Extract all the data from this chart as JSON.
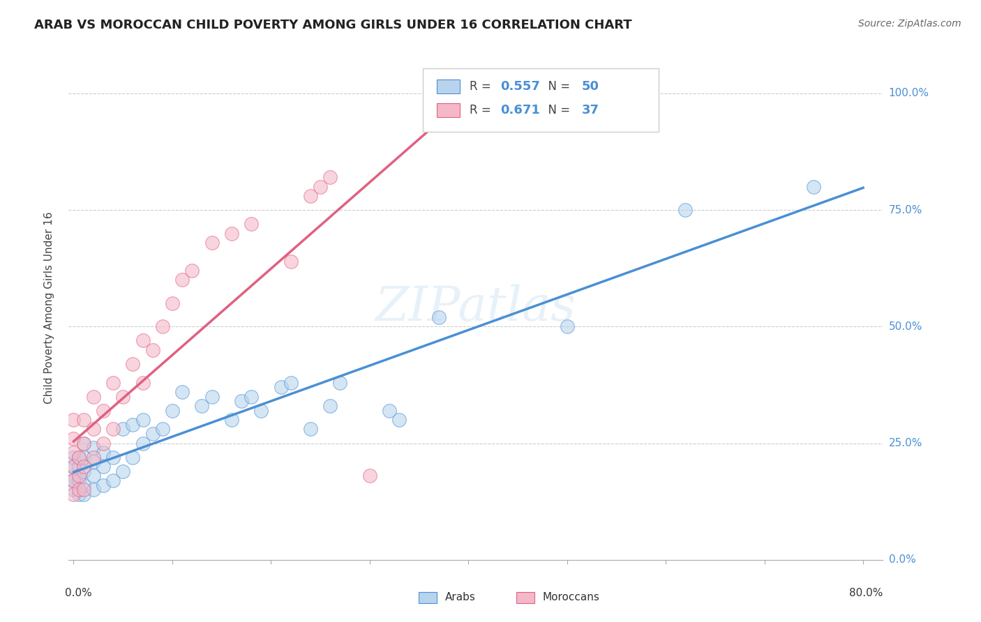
{
  "title": "ARAB VS MOROCCAN CHILD POVERTY AMONG GIRLS UNDER 16 CORRELATION CHART",
  "source": "Source: ZipAtlas.com",
  "ylabel": "Child Poverty Among Girls Under 16",
  "xlim": [
    0.0,
    0.8
  ],
  "ylim": [
    0.0,
    1.05
  ],
  "arab_R": 0.557,
  "arab_N": 50,
  "moroccan_R": 0.671,
  "moroccan_N": 37,
  "arab_color": "#b8d4ed",
  "moroccan_color": "#f4b8c8",
  "arab_line_color": "#4a8fd4",
  "moroccan_line_color": "#e06080",
  "watermark": "ZIPatlas",
  "arab_x": [
    0.0,
    0.0,
    0.0,
    0.0,
    0.0,
    0.005,
    0.005,
    0.005,
    0.005,
    0.01,
    0.01,
    0.01,
    0.01,
    0.01,
    0.02,
    0.02,
    0.02,
    0.02,
    0.03,
    0.03,
    0.03,
    0.04,
    0.04,
    0.05,
    0.05,
    0.06,
    0.06,
    0.07,
    0.07,
    0.08,
    0.09,
    0.1,
    0.11,
    0.13,
    0.14,
    0.16,
    0.17,
    0.18,
    0.19,
    0.21,
    0.22,
    0.24,
    0.26,
    0.27,
    0.32,
    0.33,
    0.37,
    0.5,
    0.62,
    0.75
  ],
  "arab_y": [
    0.15,
    0.18,
    0.2,
    0.22,
    0.17,
    0.14,
    0.17,
    0.2,
    0.22,
    0.14,
    0.16,
    0.19,
    0.22,
    0.25,
    0.15,
    0.18,
    0.21,
    0.24,
    0.16,
    0.2,
    0.23,
    0.17,
    0.22,
    0.19,
    0.28,
    0.22,
    0.29,
    0.25,
    0.3,
    0.27,
    0.28,
    0.32,
    0.36,
    0.33,
    0.35,
    0.3,
    0.34,
    0.35,
    0.32,
    0.37,
    0.38,
    0.28,
    0.33,
    0.38,
    0.32,
    0.3,
    0.52,
    0.5,
    0.75,
    0.8
  ],
  "moroccan_x": [
    0.0,
    0.0,
    0.0,
    0.0,
    0.0,
    0.0,
    0.005,
    0.005,
    0.005,
    0.01,
    0.01,
    0.01,
    0.01,
    0.02,
    0.02,
    0.02,
    0.03,
    0.03,
    0.04,
    0.04,
    0.05,
    0.06,
    0.07,
    0.07,
    0.08,
    0.09,
    0.1,
    0.11,
    0.12,
    0.14,
    0.16,
    0.18,
    0.22,
    0.24,
    0.25,
    0.26,
    0.3
  ],
  "moroccan_y": [
    0.14,
    0.17,
    0.2,
    0.23,
    0.26,
    0.3,
    0.15,
    0.18,
    0.22,
    0.15,
    0.2,
    0.25,
    0.3,
    0.22,
    0.28,
    0.35,
    0.25,
    0.32,
    0.28,
    0.38,
    0.35,
    0.42,
    0.38,
    0.47,
    0.45,
    0.5,
    0.55,
    0.6,
    0.62,
    0.68,
    0.7,
    0.72,
    0.64,
    0.78,
    0.8,
    0.82,
    0.18
  ]
}
